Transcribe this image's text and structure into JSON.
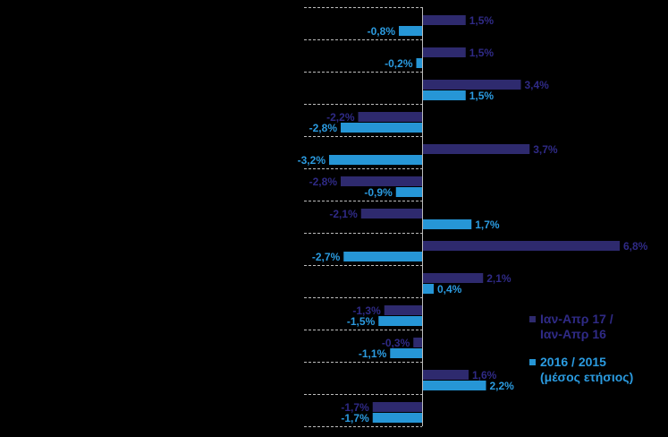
{
  "chart_data": {
    "type": "bar",
    "orientation": "horizontal",
    "categories": [
      "",
      "",
      "",
      "",
      "",
      "",
      "",
      "",
      "",
      "",
      "",
      "",
      ""
    ],
    "series": [
      {
        "name": "Ιαν-Απρ 17 /\nΙαν-Απρ 16",
        "color": "#2E2A6E",
        "label_color": "#2F2A86",
        "values": [
          1.5,
          1.5,
          3.4,
          -2.2,
          3.7,
          -2.8,
          -2.1,
          6.8,
          2.1,
          -1.3,
          -0.3,
          1.6,
          -1.7
        ],
        "labels": [
          "1,5%",
          "1,5%",
          "3,4%",
          "-2,2%",
          "3,7%",
          "-2,8%",
          "-2,1%",
          "6,8%",
          "2,1%",
          "-1,3%",
          "-0,3%",
          "1,6%",
          "-1,7%"
        ]
      },
      {
        "name": "2016 / 2015\n(μέσος ετήσιος)",
        "color": "#2696D6",
        "label_color": "#2B9BE0",
        "values": [
          -0.8,
          -0.2,
          1.5,
          -2.8,
          -3.2,
          -0.9,
          1.7,
          -2.7,
          0.4,
          -1.5,
          -1.1,
          2.2,
          -1.7
        ],
        "labels": [
          "-0,8%",
          "-0,2%",
          "1,5%",
          "-2,8%",
          "-3,2%",
          "-0,9%",
          "1,7%",
          "-2,7%",
          "0,4%",
          "-1,5%",
          "-1,1%",
          "2,2%",
          "-1,7%"
        ]
      }
    ],
    "title": "",
    "xlabel": "",
    "ylabel": "",
    "xlim": [
      -3.2,
      6.8
    ],
    "legend_position": "bottom-right"
  },
  "colors": {
    "background": "#000000",
    "axis": "#BBBBBB",
    "gridline": "#BBBBBB"
  }
}
